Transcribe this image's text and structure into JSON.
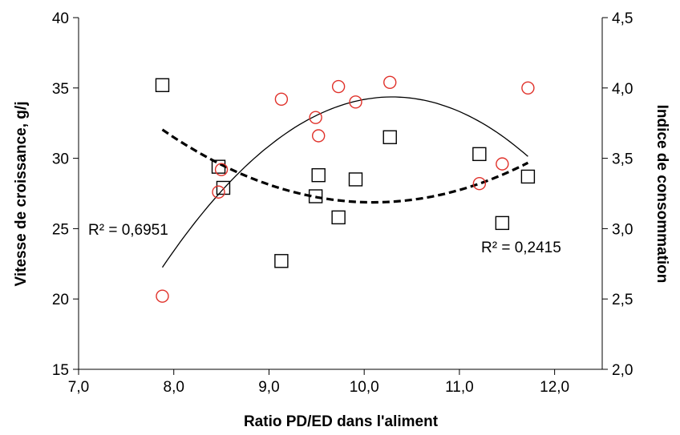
{
  "chart_data": {
    "type": "scatter",
    "title": "",
    "xlabel": "Ratio PD/ED  dans l'aliment",
    "ylabel_left": "Vitesse de croissance, g/j",
    "ylabel_right": "Indice de consommation",
    "xlim": [
      7.0,
      12.5
    ],
    "ylim_left": [
      15,
      40
    ],
    "ylim_right": [
      2.0,
      4.5
    ],
    "x_ticks": [
      "7,0",
      "8,0",
      "9,0",
      "10,0",
      "11,0",
      "12,0"
    ],
    "y_left_ticks": [
      "15",
      "20",
      "25",
      "30",
      "35",
      "40"
    ],
    "y_right_ticks": [
      "2,0",
      "2,5",
      "3,0",
      "3,5",
      "4,0",
      "4,5"
    ],
    "grid": false,
    "legend": "none",
    "series": [
      {
        "marker": "square",
        "axis": "left",
        "color": "#000000",
        "points": [
          [
            7.88,
            35.2
          ],
          [
            8.47,
            29.4
          ],
          [
            8.52,
            27.9
          ],
          [
            9.13,
            22.7
          ],
          [
            9.49,
            27.3
          ],
          [
            9.52,
            28.8
          ],
          [
            9.73,
            25.8
          ],
          [
            9.91,
            28.5
          ],
          [
            10.27,
            31.5
          ],
          [
            11.21,
            30.3
          ],
          [
            11.45,
            25.4
          ],
          [
            11.72,
            28.7
          ]
        ],
        "trend": {
          "type": "polynomial-2",
          "style": "dashed",
          "x_range": [
            7.88,
            11.72
          ],
          "points": [
            [
              7.88,
              32.2
            ],
            [
              8.5,
              29.4
            ],
            [
              9.2,
              27.5
            ],
            [
              10.2,
              27.0
            ],
            [
              11.0,
              28.0
            ],
            [
              11.72,
              29.5
            ]
          ],
          "r2_label": "R² = 0,2415"
        }
      },
      {
        "marker": "circle",
        "axis": "right",
        "color": "#e0312a",
        "points": [
          [
            7.88,
            2.52
          ],
          [
            8.47,
            3.26
          ],
          [
            8.5,
            3.42
          ],
          [
            9.13,
            3.92
          ],
          [
            9.49,
            3.79
          ],
          [
            9.52,
            3.66
          ],
          [
            9.73,
            4.01
          ],
          [
            9.91,
            3.9
          ],
          [
            10.27,
            4.04
          ],
          [
            11.21,
            3.32
          ],
          [
            11.45,
            3.46
          ],
          [
            11.72,
            4.0
          ]
        ],
        "trend": {
          "type": "polynomial-2",
          "style": "solid",
          "x_range": [
            7.88,
            11.72
          ],
          "points": [
            [
              7.88,
              2.72
            ],
            [
              8.5,
              3.28
            ],
            [
              9.2,
              3.67
            ],
            [
              10.3,
              3.96
            ],
            [
              11.0,
              3.81
            ],
            [
              11.72,
              3.52
            ]
          ],
          "r2_label": "R² = 0,6951"
        }
      }
    ]
  }
}
